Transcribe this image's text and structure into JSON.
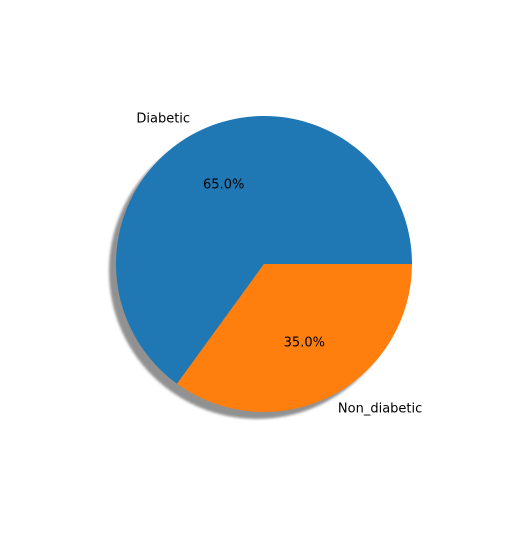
{
  "chart_data": {
    "type": "pie",
    "title": "",
    "categories": [
      "Diabetic",
      "Non_diabetic"
    ],
    "values": [
      65.0,
      35.0
    ],
    "percent_labels": [
      "65.0%",
      "35.0%"
    ],
    "colors": [
      "#1f77b4",
      "#ff7f0e"
    ],
    "shadow": true,
    "legend": "none"
  }
}
